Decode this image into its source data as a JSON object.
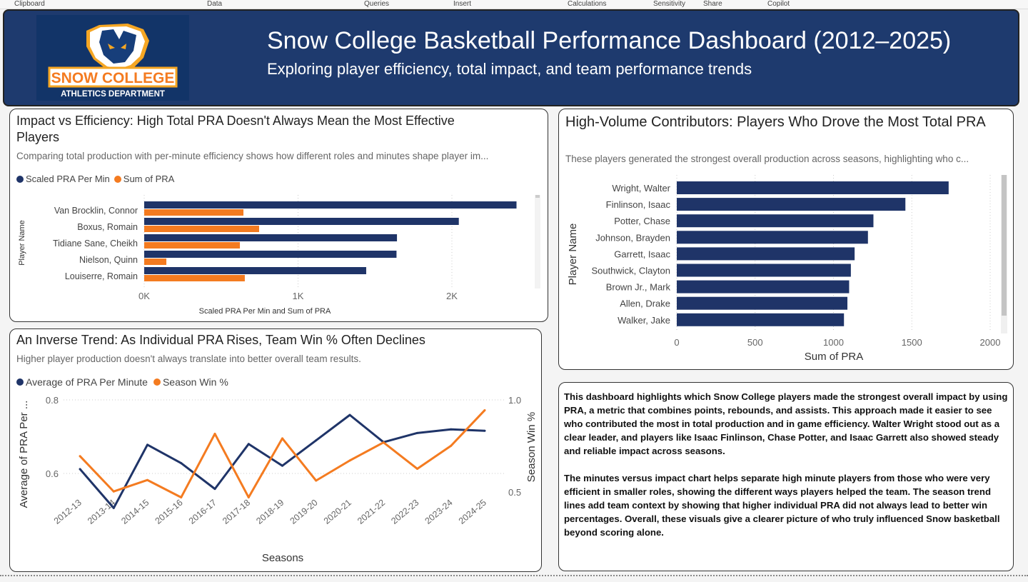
{
  "ribbon": [
    "Clipboard",
    "Data",
    "Queries",
    "Insert",
    "Calculations",
    "Sensitivity",
    "Share",
    "Copilot"
  ],
  "header": {
    "title": "Snow College Basketball Performance Dashboard (2012–2025)",
    "subtitle": "Exploring player efficiency, total impact, and team performance trends",
    "logo_text": "SNOW COLLEGE",
    "logo_subtext": "ATHLETICS DEPARTMENT"
  },
  "colors": {
    "navy": "#1f3468",
    "orange": "#f47b20",
    "header_bg": "#1e3a6e"
  },
  "impact_panel": {
    "title": "Impact vs Efficiency: High Total PRA Doesn't Always Mean the Most Effective Players",
    "subtitle": "Comparing total production with per-minute efficiency shows how different roles and minutes shape player im...",
    "legend": [
      "Scaled PRA Per Min",
      "Sum of PRA"
    ]
  },
  "trend_panel": {
    "title": "An Inverse Trend: As Individual PRA Rises, Team Win % Often Declines",
    "subtitle": "Higher player production doesn't always translate into better overall team results.",
    "legend": [
      "Average of PRA Per Minute",
      "Season Win %"
    ]
  },
  "volume_panel": {
    "title": "High-Volume Contributors: Players Who Drove the Most Total PRA",
    "subtitle": "These players generated the strongest overall production across seasons, highlighting who c..."
  },
  "narrative": {
    "paragraphs": [
      "This dashboard highlights which Snow College players made the strongest overall impact by using PRA, a metric that combines points, rebounds, and assists. This approach made it easier to see who contributed the most in total production and in game efficiency. Walter Wright stood out as a clear leader, and players like Isaac Finlinson, Chase Potter, and Isaac Garrett also showed steady and reliable impact across seasons.",
      "The minutes versus impact chart helps separate high minute players from those who were very efficient in smaller roles, showing the different ways players helped the team. The season trend lines add team context by showing that higher individual PRA did not always lead to better win percentages. Overall, these visuals give a clearer picture of who truly influenced Snow basketball beyond scoring alone."
    ]
  },
  "chart_data": [
    {
      "type": "bar",
      "orientation": "horizontal",
      "categories": [
        "Van Brocklin, Connor",
        "Boxus, Romain",
        "Tidiane Sane, Cheikh",
        "Nielson, Quinn",
        "Louiserre, Romain"
      ],
      "series": [
        {
          "name": "Scaled PRA Per Min",
          "values": [
            2420,
            2045,
            1643,
            1640,
            1443
          ]
        },
        {
          "name": "Sum of PRA",
          "values": [
            645,
            747,
            622,
            144,
            654
          ]
        }
      ],
      "xlabel": "Scaled PRA Per Min and Sum of PRA",
      "ylabel": "Player Name",
      "xticks": [
        "0K",
        "1K",
        "2K"
      ],
      "xlim": [
        0,
        2500
      ],
      "grid": true,
      "legend": "top-left"
    },
    {
      "type": "line",
      "categories": [
        "2012-13",
        "2013-14",
        "2014-15",
        "2015-16",
        "2016-17",
        "2017-18",
        "2018-19",
        "2019-20",
        "2020-21",
        "2021-22",
        "2022-23",
        "2023-24",
        "2024-25"
      ],
      "series": [
        {
          "name": "Average of PRA Per Minute",
          "axis": "left",
          "values": [
            0.612,
            0.506,
            0.678,
            0.628,
            0.558,
            0.68,
            0.621,
            0.69,
            0.759,
            0.685,
            0.71,
            0.72,
            0.716
          ]
        },
        {
          "name": "Season Win %",
          "axis": "right",
          "values": [
            0.695,
            0.503,
            0.565,
            0.471,
            0.816,
            0.471,
            0.791,
            0.562,
            0.671,
            0.769,
            0.626,
            0.751,
            0.944
          ]
        }
      ],
      "xlabel": "Seasons",
      "ylabel": "Average of PRA Per ...",
      "y2label": "Season Win %",
      "yticks": [
        "0.6",
        "0.8"
      ],
      "y2ticks": [
        "0.5",
        "1.0"
      ],
      "ylim": [
        0.49,
        0.8
      ],
      "y2lim": [
        0.39,
        1.0
      ],
      "grid": true,
      "legend": "top-left"
    },
    {
      "type": "bar",
      "orientation": "horizontal",
      "categories": [
        "Wright, Walter",
        "Finlinson, Isaac",
        "Potter, Chase",
        "Johnson, Brayden",
        "Garrett, Isaac",
        "Southwick, Clayton",
        "Brown Jr., Mark",
        "Allen, Drake",
        "Walker, Jake"
      ],
      "values": [
        1735,
        1459,
        1255,
        1220,
        1135,
        1111,
        1100,
        1089,
        1067
      ],
      "xlabel": "Sum of PRA",
      "ylabel": "Player Name",
      "xticks": [
        "0",
        "500",
        "1000",
        "1500",
        "2000"
      ],
      "xlim": [
        0,
        2000
      ],
      "grid": true
    }
  ]
}
